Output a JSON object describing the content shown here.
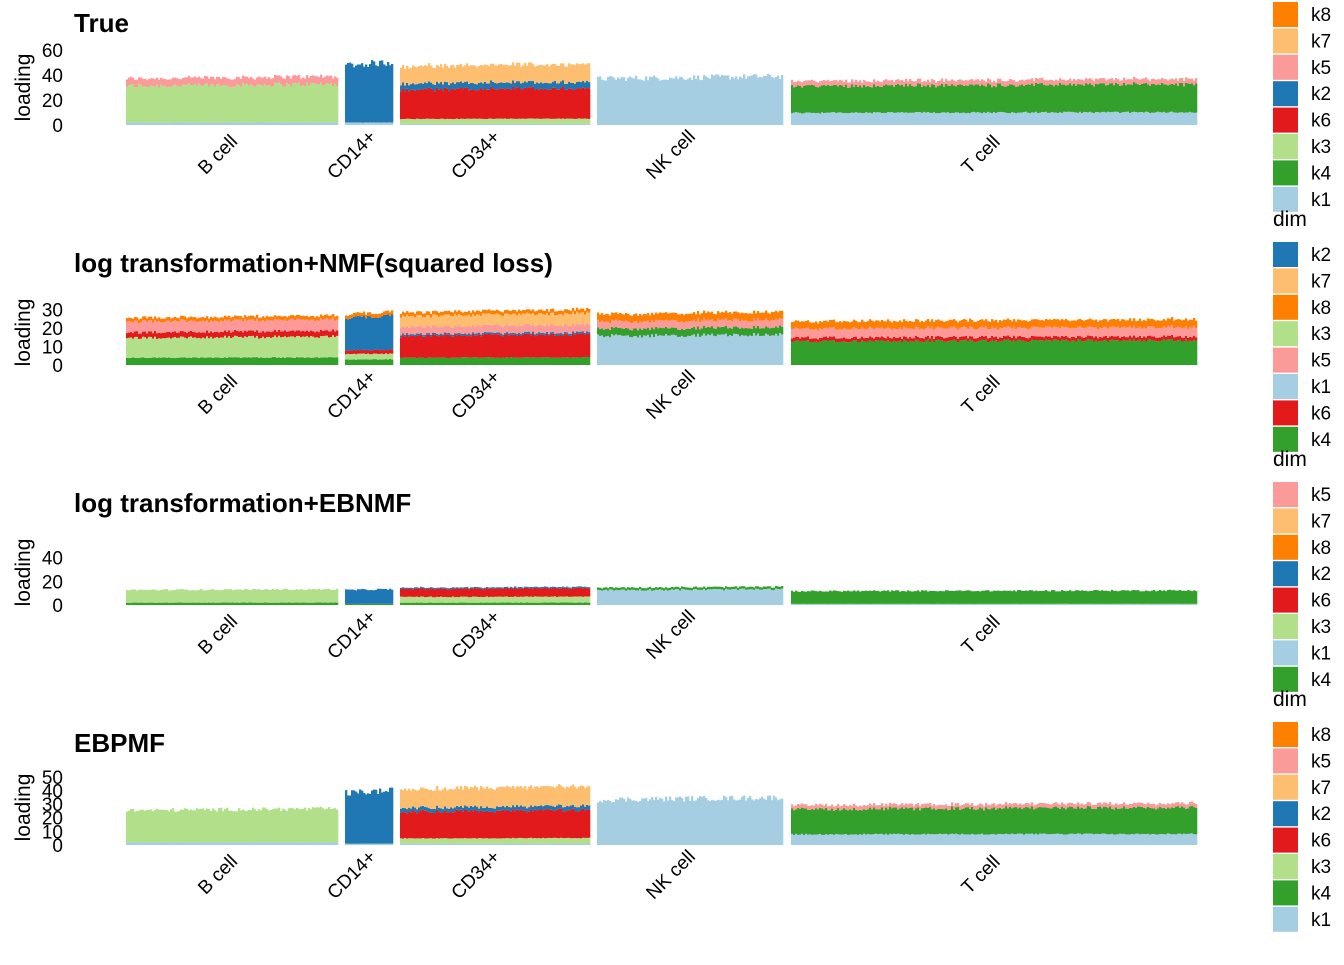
{
  "palette": {
    "k1": "#a6cee3",
    "k2": "#1f78b4",
    "k3": "#b2df8a",
    "k4": "#33a02c",
    "k5": "#fb9a99",
    "k6": "#e31a1c",
    "k7": "#fdbf6f",
    "k8": "#ff7f00"
  },
  "cell_types": [
    "B cell",
    "CD14+",
    "CD34+",
    "NK cell",
    "T cell"
  ],
  "chart_data": [
    {
      "type": "bar",
      "stacked": true,
      "title": "True",
      "ylabel": "loading",
      "ylim": [
        0,
        60
      ],
      "yticks": [
        0,
        20,
        40,
        60
      ],
      "categories": [
        "B cell",
        "CD14+",
        "CD34+",
        "NK cell",
        "T cell"
      ],
      "legend": {
        "title": "",
        "entries": [
          "k8",
          "k7",
          "k5",
          "k2",
          "k6",
          "k3",
          "k4",
          "k1"
        ]
      },
      "group_profiles": {
        "B cell": {
          "k3": 30,
          "k1": 2,
          "k5": 6
        },
        "CD14+": {
          "k2": 47,
          "k1": 2
        },
        "CD34+": {
          "k6": 24,
          "k7": 14,
          "k3": 4,
          "k2": 5,
          "k1": 1
        },
        "NK cell": {
          "k1": 38
        },
        "T cell": {
          "k4": 22,
          "k1": 10,
          "k5": 4
        }
      }
    },
    {
      "type": "bar",
      "stacked": true,
      "title": "log transformation+NMF(squared loss)",
      "ylabel": "loading",
      "ylim": [
        0,
        35
      ],
      "yticks": [
        0,
        10,
        20,
        30
      ],
      "categories": [
        "B cell",
        "CD14+",
        "CD34+",
        "NK cell",
        "T cell"
      ],
      "legend": {
        "title": "dim",
        "entries": [
          "k2",
          "k7",
          "k8",
          "k3",
          "k5",
          "k1",
          "k6",
          "k4"
        ]
      },
      "group_profiles": {
        "B cell": {
          "k4": 4,
          "k6": 3,
          "k5": 6,
          "k3": 11,
          "k8": 2
        },
        "CD14+": {
          "k4": 3,
          "k6": 2,
          "k3": 3,
          "k8": 2,
          "k2": 18
        },
        "CD34+": {
          "k4": 4,
          "k6": 12,
          "k5": 4,
          "k7": 6,
          "k8": 2,
          "k2": 1
        },
        "NK cell": {
          "k4": 4,
          "k1": 16,
          "k5": 4,
          "k8": 4
        },
        "T cell": {
          "k4": 13,
          "k6": 2,
          "k5": 5,
          "k8": 4
        }
      }
    },
    {
      "type": "bar",
      "stacked": true,
      "title": "log transformation+EBNMF",
      "ylabel": "loading",
      "ylim": [
        0,
        55
      ],
      "yticks": [
        0,
        20,
        40
      ],
      "categories": [
        "B cell",
        "CD14+",
        "CD34+",
        "NK cell",
        "T cell"
      ],
      "legend": {
        "title": "dim",
        "entries": [
          "k5",
          "k7",
          "k8",
          "k2",
          "k6",
          "k3",
          "k1",
          "k4"
        ]
      },
      "group_profiles": {
        "B cell": {
          "k4": 2,
          "k3": 11
        },
        "CD14+": {
          "k4": 1,
          "k2": 12
        },
        "CD34+": {
          "k4": 2,
          "k3": 5,
          "k6": 7,
          "k2": 1
        },
        "NK cell": {
          "k4": 2,
          "k1": 13
        },
        "T cell": {
          "k4": 11,
          "k1": 1
        }
      }
    },
    {
      "type": "bar",
      "stacked": true,
      "title": "EBPMF",
      "ylabel": "loading",
      "ylim": [
        0,
        55
      ],
      "yticks": [
        0,
        10,
        20,
        30,
        40,
        50
      ],
      "categories": [
        "B cell",
        "CD14+",
        "CD34+",
        "NK cell",
        "T cell"
      ],
      "legend": {
        "title": "dim",
        "entries": [
          "k8",
          "k5",
          "k7",
          "k2",
          "k6",
          "k3",
          "k4",
          "k1"
        ]
      },
      "group_profiles": {
        "B cell": {
          "k3": 24,
          "k1": 2
        },
        "CD14+": {
          "k2": 38,
          "k1": 1
        },
        "CD34+": {
          "k6": 20,
          "k7": 14,
          "k3": 4,
          "k2": 3,
          "k1": 1
        },
        "NK cell": {
          "k1": 34
        },
        "T cell": {
          "k4": 19,
          "k1": 8,
          "k5": 3
        }
      }
    }
  ]
}
